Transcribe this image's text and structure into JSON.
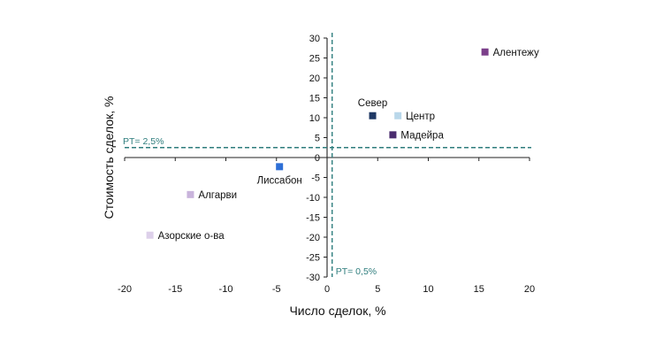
{
  "chart_data": {
    "type": "scatter",
    "xlabel": "Число сделок, %",
    "ylabel": "Стоимость сделок, %",
    "xlim": [
      -20,
      20
    ],
    "ylim": [
      -30,
      30
    ],
    "x_ticks": [
      -20,
      -15,
      -10,
      -5,
      0,
      5,
      10,
      15,
      20
    ],
    "y_ticks": [
      30,
      25,
      20,
      15,
      10,
      5,
      0,
      -5,
      -10,
      -15,
      -20,
      -25,
      -30
    ],
    "grid": false,
    "reference_lines": [
      {
        "axis": "y",
        "value": 2.5,
        "label": "PT= 2,5%"
      },
      {
        "axis": "x",
        "value": 0.5,
        "label": "PT= 0,5%"
      }
    ],
    "ref_color": "#2e7d7d",
    "points": [
      {
        "label": "Алентежу",
        "x": 15.6,
        "y": 26.5,
        "color": "#7b3f8a"
      },
      {
        "label": "Север",
        "x": 4.5,
        "y": 10.5,
        "color": "#1f3864"
      },
      {
        "label": "Центр",
        "x": 7.0,
        "y": 10.5,
        "color": "#b9d7ea"
      },
      {
        "label": "Мадейра",
        "x": 6.5,
        "y": 5.7,
        "color": "#4a2c6e"
      },
      {
        "label": "Лиссабон",
        "x": -4.7,
        "y": -2.3,
        "color": "#2e6fd6"
      },
      {
        "label": "Алгарви",
        "x": -13.5,
        "y": -9.3,
        "color": "#c9b4dc"
      },
      {
        "label": "Азорские о-ва",
        "x": -17.5,
        "y": -19.5,
        "color": "#ddd0ea"
      }
    ]
  }
}
